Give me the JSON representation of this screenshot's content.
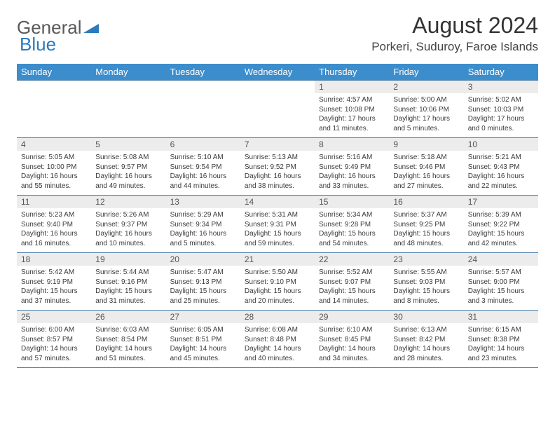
{
  "brand": {
    "part1": "General",
    "part2": "Blue"
  },
  "title": "August 2024",
  "location": "Porkeri, Suduroy, Faroe Islands",
  "colors": {
    "header_bg": "#3c8dcc",
    "header_text": "#ffffff",
    "daynum_bg": "#ececec",
    "row_border": "#4a7ba8",
    "brand_blue": "#2b7bbd",
    "body_text": "#333333"
  },
  "typography": {
    "title_fontsize": 32,
    "location_fontsize": 17,
    "dayhead_fontsize": 13,
    "cell_fontsize": 10
  },
  "day_headers": [
    "Sunday",
    "Monday",
    "Tuesday",
    "Wednesday",
    "Thursday",
    "Friday",
    "Saturday"
  ],
  "weeks": [
    [
      {
        "n": "",
        "lines": [
          "",
          "",
          "",
          ""
        ]
      },
      {
        "n": "",
        "lines": [
          "",
          "",
          "",
          ""
        ]
      },
      {
        "n": "",
        "lines": [
          "",
          "",
          "",
          ""
        ]
      },
      {
        "n": "",
        "lines": [
          "",
          "",
          "",
          ""
        ]
      },
      {
        "n": "1",
        "lines": [
          "Sunrise: 4:57 AM",
          "Sunset: 10:08 PM",
          "Daylight: 17 hours",
          "and 11 minutes."
        ]
      },
      {
        "n": "2",
        "lines": [
          "Sunrise: 5:00 AM",
          "Sunset: 10:06 PM",
          "Daylight: 17 hours",
          "and 5 minutes."
        ]
      },
      {
        "n": "3",
        "lines": [
          "Sunrise: 5:02 AM",
          "Sunset: 10:03 PM",
          "Daylight: 17 hours",
          "and 0 minutes."
        ]
      }
    ],
    [
      {
        "n": "4",
        "lines": [
          "Sunrise: 5:05 AM",
          "Sunset: 10:00 PM",
          "Daylight: 16 hours",
          "and 55 minutes."
        ]
      },
      {
        "n": "5",
        "lines": [
          "Sunrise: 5:08 AM",
          "Sunset: 9:57 PM",
          "Daylight: 16 hours",
          "and 49 minutes."
        ]
      },
      {
        "n": "6",
        "lines": [
          "Sunrise: 5:10 AM",
          "Sunset: 9:54 PM",
          "Daylight: 16 hours",
          "and 44 minutes."
        ]
      },
      {
        "n": "7",
        "lines": [
          "Sunrise: 5:13 AM",
          "Sunset: 9:52 PM",
          "Daylight: 16 hours",
          "and 38 minutes."
        ]
      },
      {
        "n": "8",
        "lines": [
          "Sunrise: 5:16 AM",
          "Sunset: 9:49 PM",
          "Daylight: 16 hours",
          "and 33 minutes."
        ]
      },
      {
        "n": "9",
        "lines": [
          "Sunrise: 5:18 AM",
          "Sunset: 9:46 PM",
          "Daylight: 16 hours",
          "and 27 minutes."
        ]
      },
      {
        "n": "10",
        "lines": [
          "Sunrise: 5:21 AM",
          "Sunset: 9:43 PM",
          "Daylight: 16 hours",
          "and 22 minutes."
        ]
      }
    ],
    [
      {
        "n": "11",
        "lines": [
          "Sunrise: 5:23 AM",
          "Sunset: 9:40 PM",
          "Daylight: 16 hours",
          "and 16 minutes."
        ]
      },
      {
        "n": "12",
        "lines": [
          "Sunrise: 5:26 AM",
          "Sunset: 9:37 PM",
          "Daylight: 16 hours",
          "and 10 minutes."
        ]
      },
      {
        "n": "13",
        "lines": [
          "Sunrise: 5:29 AM",
          "Sunset: 9:34 PM",
          "Daylight: 16 hours",
          "and 5 minutes."
        ]
      },
      {
        "n": "14",
        "lines": [
          "Sunrise: 5:31 AM",
          "Sunset: 9:31 PM",
          "Daylight: 15 hours",
          "and 59 minutes."
        ]
      },
      {
        "n": "15",
        "lines": [
          "Sunrise: 5:34 AM",
          "Sunset: 9:28 PM",
          "Daylight: 15 hours",
          "and 54 minutes."
        ]
      },
      {
        "n": "16",
        "lines": [
          "Sunrise: 5:37 AM",
          "Sunset: 9:25 PM",
          "Daylight: 15 hours",
          "and 48 minutes."
        ]
      },
      {
        "n": "17",
        "lines": [
          "Sunrise: 5:39 AM",
          "Sunset: 9:22 PM",
          "Daylight: 15 hours",
          "and 42 minutes."
        ]
      }
    ],
    [
      {
        "n": "18",
        "lines": [
          "Sunrise: 5:42 AM",
          "Sunset: 9:19 PM",
          "Daylight: 15 hours",
          "and 37 minutes."
        ]
      },
      {
        "n": "19",
        "lines": [
          "Sunrise: 5:44 AM",
          "Sunset: 9:16 PM",
          "Daylight: 15 hours",
          "and 31 minutes."
        ]
      },
      {
        "n": "20",
        "lines": [
          "Sunrise: 5:47 AM",
          "Sunset: 9:13 PM",
          "Daylight: 15 hours",
          "and 25 minutes."
        ]
      },
      {
        "n": "21",
        "lines": [
          "Sunrise: 5:50 AM",
          "Sunset: 9:10 PM",
          "Daylight: 15 hours",
          "and 20 minutes."
        ]
      },
      {
        "n": "22",
        "lines": [
          "Sunrise: 5:52 AM",
          "Sunset: 9:07 PM",
          "Daylight: 15 hours",
          "and 14 minutes."
        ]
      },
      {
        "n": "23",
        "lines": [
          "Sunrise: 5:55 AM",
          "Sunset: 9:03 PM",
          "Daylight: 15 hours",
          "and 8 minutes."
        ]
      },
      {
        "n": "24",
        "lines": [
          "Sunrise: 5:57 AM",
          "Sunset: 9:00 PM",
          "Daylight: 15 hours",
          "and 3 minutes."
        ]
      }
    ],
    [
      {
        "n": "25",
        "lines": [
          "Sunrise: 6:00 AM",
          "Sunset: 8:57 PM",
          "Daylight: 14 hours",
          "and 57 minutes."
        ]
      },
      {
        "n": "26",
        "lines": [
          "Sunrise: 6:03 AM",
          "Sunset: 8:54 PM",
          "Daylight: 14 hours",
          "and 51 minutes."
        ]
      },
      {
        "n": "27",
        "lines": [
          "Sunrise: 6:05 AM",
          "Sunset: 8:51 PM",
          "Daylight: 14 hours",
          "and 45 minutes."
        ]
      },
      {
        "n": "28",
        "lines": [
          "Sunrise: 6:08 AM",
          "Sunset: 8:48 PM",
          "Daylight: 14 hours",
          "and 40 minutes."
        ]
      },
      {
        "n": "29",
        "lines": [
          "Sunrise: 6:10 AM",
          "Sunset: 8:45 PM",
          "Daylight: 14 hours",
          "and 34 minutes."
        ]
      },
      {
        "n": "30",
        "lines": [
          "Sunrise: 6:13 AM",
          "Sunset: 8:42 PM",
          "Daylight: 14 hours",
          "and 28 minutes."
        ]
      },
      {
        "n": "31",
        "lines": [
          "Sunrise: 6:15 AM",
          "Sunset: 8:38 PM",
          "Daylight: 14 hours",
          "and 23 minutes."
        ]
      }
    ]
  ]
}
